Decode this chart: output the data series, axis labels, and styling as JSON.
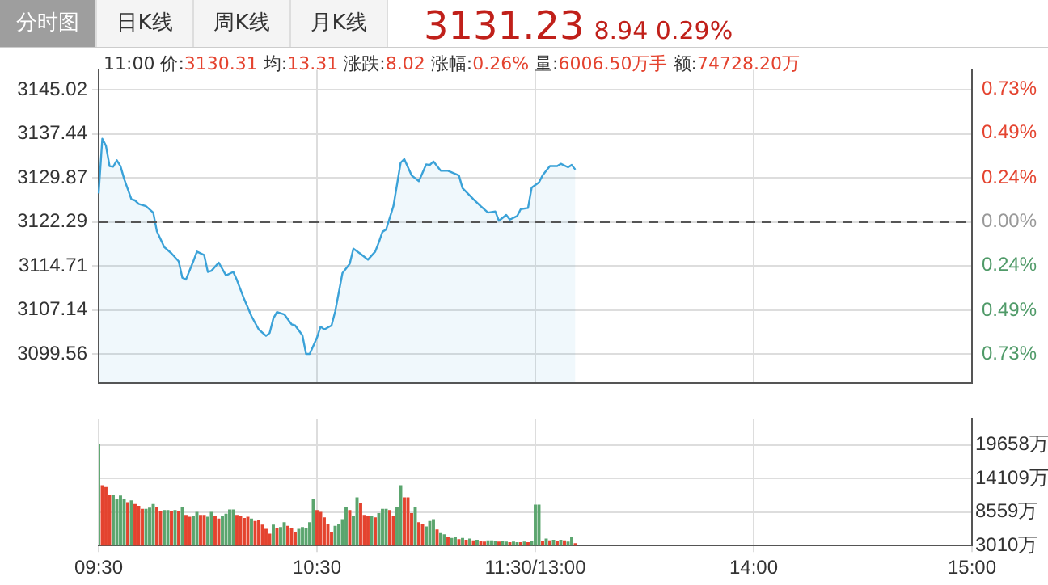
{
  "chart_data": [
    {
      "type": "area",
      "title": "3131.23 8.94 0.29%",
      "subtitle": "11:00 价:3130.31 均:13.31 涨跌:8.02 涨幅:0.26% 量:6006.50万手 额:74728.20万",
      "annotations": [
        "分时图",
        "日K线",
        "周K线",
        "月K线"
      ],
      "categories": [
        null,
        null,
        null,
        null,
        null,
        null,
        null,
        null,
        null,
        null,
        null,
        null,
        null,
        null,
        null,
        null,
        null,
        null,
        null,
        null,
        null,
        null,
        null,
        null,
        null,
        null,
        null,
        null,
        null,
        null,
        null,
        null,
        null,
        null,
        null,
        null,
        null,
        null,
        null,
        null,
        null,
        null,
        null,
        null,
        null,
        null,
        null,
        null,
        null,
        null,
        null,
        null,
        null,
        null,
        null,
        null,
        null,
        null,
        null,
        null,
        null,
        null,
        null,
        null,
        null,
        null,
        null,
        null,
        null,
        null,
        null,
        null,
        null,
        null,
        null,
        null,
        null,
        null,
        null,
        null,
        null,
        null,
        null,
        null,
        null,
        null,
        null,
        null,
        null,
        null,
        null,
        null,
        null,
        null,
        null,
        null,
        null,
        null,
        null,
        null,
        null,
        null,
        null,
        null,
        null,
        null,
        null,
        null,
        null,
        null,
        null,
        null,
        null,
        null,
        null,
        null,
        null,
        null,
        null,
        null,
        null,
        null,
        null,
        null,
        null,
        null,
        null,
        null,
        null,
        null,
        null,
        null,
        null,
        null,
        null,
        null,
        null,
        null,
        null,
        null,
        null,
        null,
        null,
        null,
        null,
        null,
        null,
        null,
        null,
        null,
        null,
        null,
        null,
        null,
        null,
        null,
        null,
        null,
        null,
        null,
        null,
        null,
        null,
        null,
        null,
        null,
        null,
        null,
        null,
        null,
        null,
        null,
        null,
        null,
        null,
        null,
        null,
        null,
        null,
        null,
        null,
        null,
        null,
        null,
        null,
        null,
        null,
        null,
        null,
        null,
        null,
        null,
        null,
        null,
        null,
        null,
        null,
        null,
        null,
        null,
        null,
        null,
        null,
        null,
        null,
        null,
        null,
        null,
        null,
        null,
        null,
        null,
        null,
        null,
        null,
        null,
        null,
        null,
        null,
        null,
        null,
        null,
        null,
        null,
        null,
        null,
        null,
        null,
        null,
        null,
        null,
        null,
        null,
        null,
        null,
        null,
        null,
        null,
        null,
        null,
        null
      ],
      "values": [
        3127.2,
        3136.6,
        3135.4,
        3131.9,
        3131.8,
        3132.9,
        3131.9,
        3129.7,
        null,
        3126.2,
        3126.0,
        3125.4,
        null,
        3125.0,
        null,
        3123.9,
        3120.7,
        null,
        3118.0,
        null,
        3116.9,
        null,
        3115.5,
        3112.7,
        3112.4,
        null,
        3115.5,
        3117.2,
        null,
        3116.6,
        3113.7,
        3113.9,
        null,
        3115.3,
        null,
        3113.1,
        null,
        3113.7,
        3112.3,
        null,
        3109.0,
        null,
        3106.1,
        null,
        3103.8,
        null,
        3102.7,
        3103.2,
        3105.7,
        3106.8,
        null,
        3106.4,
        null,
        3104.7,
        3104.5,
        null,
        3102.8,
        3099.6,
        3099.6,
        null,
        3102.4,
        3104.3,
        3103.8,
        null,
        3104.5,
        3106.9,
        null,
        3113.5,
        null,
        3115.1,
        3117.7,
        null,
        3116.8,
        null,
        3115.8,
        null,
        3117.2,
        3118.8,
        3120.6,
        3121.0,
        null,
        3125.0,
        null,
        3132.5,
        3133.1,
        null,
        3130.3,
        null,
        3129.3,
        null,
        3132.2,
        3132.1,
        3132.7,
        null,
        3131.1,
        null,
        3131.1,
        null,
        null,
        3130.3,
        3128.1,
        null,
        null,
        3126.2,
        null,
        3125.0,
        null,
        3123.9,
        null,
        3124.1,
        3122.5,
        null,
        3123.5,
        3122.7,
        null,
        3123.3,
        3124.5,
        null,
        3124.7,
        3128.2,
        null,
        3129.1,
        3130.3,
        null,
        3131.9,
        null,
        3131.9,
        3132.3,
        null,
        3131.7,
        3132.1,
        3131.3,
        null,
        null,
        null,
        null,
        null,
        null,
        null,
        null,
        null,
        null,
        null,
        null,
        null,
        null,
        null,
        null,
        null,
        null,
        null,
        null,
        null,
        null,
        null,
        null,
        null,
        null,
        null,
        null,
        null,
        null,
        null,
        null,
        null,
        null,
        null,
        null,
        null,
        null,
        null,
        null,
        null,
        null,
        null,
        null,
        null,
        null,
        null,
        null,
        null,
        null,
        null,
        null,
        null,
        null,
        null,
        null,
        null,
        null,
        null,
        null,
        null,
        null,
        null,
        null,
        null,
        null,
        null,
        null,
        null,
        null,
        null,
        null,
        null,
        null,
        null,
        null,
        null,
        null,
        null,
        null,
        null,
        null,
        null,
        null,
        null,
        null,
        null,
        null,
        null,
        null,
        null,
        null,
        null,
        null,
        null,
        null,
        null,
        null,
        null,
        null,
        null,
        null,
        null,
        null,
        null,
        null,
        null,
        null,
        null
      ],
      "color": "#3ba2d8",
      "marker": "none",
      "line_style": "solid",
      "ylim": [
        3094.65,
        3148.46
      ],
      "yticks": [
        3099.56,
        3107.14,
        3114.71,
        3122.29,
        3129.87,
        3137.44,
        3145.02
      ],
      "y2lim": [
        -0.885,
        0.838
      ],
      "y2ticks": [
        {
          "value": -0.73,
          "label": "0.73%"
        },
        {
          "value": -0.49,
          "label": "0.49%"
        },
        {
          "value": -0.24,
          "label": "0.24%"
        },
        {
          "value": 0,
          "label": "0.00%"
        },
        {
          "value": 0.24,
          "label": "0.24%"
        },
        {
          "value": 0.49,
          "label": "0.49%"
        },
        {
          "value": 0.73,
          "label": "0.73%"
        }
      ],
      "ref_lines": [
        {
          "axis": "y",
          "value": 3122.29,
          "line_style": "dashed",
          "color": "#555555"
        }
      ],
      "grid": true,
      "legend": false,
      "tick_labels": "y"
    },
    {
      "type": "bar",
      "categories": [
        "09:30",
        null,
        null,
        null,
        null,
        null,
        null,
        null,
        null,
        null,
        null,
        null,
        null,
        null,
        null,
        null,
        null,
        null,
        null,
        null,
        null,
        null,
        null,
        null,
        null,
        null,
        null,
        null,
        null,
        null,
        null,
        null,
        null,
        null,
        null,
        null,
        null,
        null,
        null,
        null,
        null,
        null,
        null,
        null,
        null,
        null,
        null,
        null,
        null,
        null,
        null,
        null,
        null,
        null,
        null,
        null,
        null,
        null,
        null,
        null,
        "10:30",
        null,
        null,
        null,
        null,
        null,
        null,
        null,
        null,
        null,
        null,
        null,
        null,
        null,
        null,
        null,
        null,
        null,
        null,
        null,
        null,
        null,
        null,
        null,
        null,
        null,
        null,
        null,
        null,
        null,
        null,
        null,
        null,
        null,
        null,
        null,
        null,
        null,
        null,
        null,
        null,
        null,
        null,
        null,
        null,
        null,
        null,
        null,
        null,
        null,
        null,
        null,
        null,
        null,
        null,
        null,
        null,
        null,
        null,
        null,
        "11:30/13:00",
        null,
        null,
        null,
        null,
        null,
        null,
        null,
        null,
        null,
        null,
        null,
        null,
        null,
        null,
        null,
        null,
        null,
        null,
        null,
        null,
        null,
        null,
        null,
        null,
        null,
        null,
        null,
        null,
        null,
        null,
        null,
        null,
        null,
        null,
        null,
        null,
        null,
        null,
        null,
        null,
        null,
        null,
        null,
        null,
        null,
        null,
        null,
        null,
        null,
        null,
        null,
        null,
        null,
        null,
        null,
        null,
        null,
        null,
        null,
        "14:00",
        null,
        null,
        null,
        null,
        null,
        null,
        null,
        null,
        null,
        null,
        null,
        null,
        null,
        null,
        null,
        null,
        null,
        null,
        null,
        null,
        null,
        null,
        null,
        null,
        null,
        null,
        null,
        null,
        null,
        null,
        null,
        null,
        null,
        null,
        null,
        null,
        null,
        null,
        null,
        null,
        null,
        null,
        null,
        null,
        null,
        null,
        null,
        null,
        null,
        null,
        null,
        null,
        null,
        null,
        null,
        null,
        null,
        null,
        null,
        "15:00"
      ],
      "series": [
        {
          "axis": "y2",
          "values": [
            19700,
            12900,
            12600,
            11300,
            11300,
            10600,
            11200,
            10600,
            10100,
            10400,
            9800,
            9500,
            9000,
            9000,
            9200,
            9800,
            9300,
            8600,
            8800,
            8800,
            8600,
            8800,
            8600,
            9300,
            8000,
            7700,
            7900,
            8500,
            8000,
            8000,
            7700,
            8500,
            7800,
            7400,
            7900,
            8200,
            8900,
            8900,
            8000,
            7800,
            7500,
            7700,
            7400,
            7000,
            7200,
            6400,
            5700,
            4900,
            6400,
            5900,
            6000,
            6800,
            6200,
            5800,
            5100,
            5700,
            6000,
            5800,
            6800,
            10700,
            8800,
            8500,
            7600,
            6500,
            5200,
            6200,
            6500,
            7300,
            9300,
            8800,
            7900,
            10900,
            10000,
            8000,
            7800,
            7900,
            7600,
            8300,
            9000,
            9000,
            8800,
            7900,
            9300,
            12900,
            10900,
            10900,
            8300,
            9300,
            6800,
            6500,
            6100,
            7000,
            7300,
            5600,
            5000,
            4800,
            4400,
            4200,
            4300,
            4000,
            4200,
            3900,
            4100,
            3800,
            3900,
            3700,
            3600,
            3800,
            3800,
            3700,
            3600,
            3700,
            3600,
            3500,
            3600,
            3500,
            3500,
            3600,
            3500,
            3700,
            9700,
            9700,
            3700,
            4100,
            3800,
            3900,
            3700,
            3900,
            3800,
            3600,
            4400,
            3300,
            null,
            null,
            null,
            null,
            null,
            null,
            null,
            null,
            null,
            null,
            null,
            null,
            null,
            null,
            null,
            null,
            null,
            null,
            null,
            null,
            null,
            null,
            null,
            null,
            null,
            null,
            null,
            null,
            null,
            null,
            null,
            null,
            null,
            null,
            null,
            null,
            null,
            null,
            null,
            null,
            null,
            null,
            null,
            null,
            null,
            null,
            null,
            null,
            null,
            null,
            null,
            null,
            null,
            null,
            null,
            null,
            null,
            null,
            null,
            null,
            null,
            null,
            null,
            null,
            null,
            null,
            null,
            null,
            null,
            null,
            null,
            null,
            null,
            null,
            null,
            null,
            null,
            null,
            null,
            null,
            null,
            null,
            null,
            null,
            null,
            null,
            null,
            null,
            null,
            null,
            null,
            null,
            null,
            null,
            null,
            null,
            null,
            null,
            null,
            null,
            null,
            null,
            null,
            null,
            null,
            null,
            null,
            null,
            null
          ],
          "colors": [
            "#5ba56e",
            "#e4432f",
            "#e4432f",
            "#e4432f",
            "#5ba56e",
            "#5ba56e",
            "#5ba56e",
            "#5ba56e",
            "#e4432f",
            "#5ba56e",
            "#e4432f",
            "#e4432f",
            "#e4432f",
            "#5ba56e",
            "#5ba56e",
            "#5ba56e",
            "#e4432f",
            "#e4432f",
            "#5ba56e",
            "#5ba56e",
            "#e4432f",
            "#5ba56e",
            "#e4432f",
            "#5ba56e",
            "#e4432f",
            "#e4432f",
            "#5ba56e",
            "#5ba56e",
            "#e4432f",
            "#e4432f",
            "#5ba56e",
            "#5ba56e",
            "#e4432f",
            "#e4432f",
            "#5ba56e",
            "#5ba56e",
            "#5ba56e",
            "#5ba56e",
            "#e4432f",
            "#e4432f",
            "#e4432f",
            "#e4432f",
            "#5ba56e",
            "#e4432f",
            "#e4432f",
            "#e4432f",
            "#e4432f",
            "#e4432f",
            "#5ba56e",
            "#e4432f",
            "#5ba56e",
            "#5ba56e",
            "#e4432f",
            "#e4432f",
            "#e4432f",
            "#5ba56e",
            "#5ba56e",
            "#5ba56e",
            "#5ba56e",
            "#5ba56e",
            "#e4432f",
            "#e4432f",
            "#e4432f",
            "#e4432f",
            "#e4432f",
            "#5ba56e",
            "#5ba56e",
            "#5ba56e",
            "#5ba56e",
            "#e4432f",
            "#5ba56e",
            "#5ba56e",
            "#e4432f",
            "#e4432f",
            "#e4432f",
            "#5ba56e",
            "#e4432f",
            "#5ba56e",
            "#5ba56e",
            "#5ba56e",
            "#e4432f",
            "#e4432f",
            "#5ba56e",
            "#5ba56e",
            "#e4432f",
            "#e4432f",
            "#e4432f",
            "#5ba56e",
            "#e4432f",
            "#e4432f",
            "#5ba56e",
            "#5ba56e",
            "#5ba56e",
            "#e4432f",
            "#5ba56e",
            "#5ba56e",
            "#e4432f",
            "#5ba56e",
            "#5ba56e",
            "#e4432f",
            "#5ba56e",
            "#e4432f",
            "#5ba56e",
            "#e4432f",
            "#5ba56e",
            "#e4432f",
            "#e4432f",
            "#5ba56e",
            "#5ba56e",
            "#5ba56e",
            "#e4432f",
            "#5ba56e",
            "#5ba56e",
            "#e4432f",
            "#5ba56e",
            "#5ba56e",
            "#e4432f",
            "#5ba56e",
            "#e4432f",
            "#5ba56e",
            "#5ba56e",
            "#5ba56e",
            "#e4432f",
            "#5ba56e",
            "#e4432f",
            "#5ba56e",
            "#e4432f",
            "#5ba56e",
            "#e4432f",
            "#5ba56e",
            "#5ba56e",
            "#e4432f",
            null,
            null,
            null,
            null,
            null,
            null,
            null,
            null,
            null,
            null,
            null,
            null,
            null,
            null,
            null,
            null,
            null,
            null,
            null,
            null,
            null,
            null,
            null,
            null,
            null,
            null,
            null,
            null,
            null,
            null,
            null,
            null,
            null,
            null,
            null,
            null,
            null,
            null,
            null,
            null,
            null,
            null,
            null,
            null,
            null,
            null,
            null,
            null,
            null,
            null,
            null,
            null,
            null,
            null,
            null,
            null,
            null,
            null,
            null,
            null,
            null,
            null,
            null,
            null,
            null,
            null,
            null,
            null,
            null,
            null,
            null,
            null,
            null,
            null,
            null,
            null,
            null,
            null,
            null,
            null,
            null,
            null,
            null,
            null,
            null,
            null,
            null,
            null,
            null,
            null,
            null,
            null,
            null,
            null,
            null,
            null,
            null,
            null,
            null,
            null,
            null,
            null,
            null,
            null,
            null,
            null,
            null,
            null,
            null
          ]
        }
      ],
      "y2lim": [
        3010,
        23990
      ],
      "y2ticks": [
        {
          "value": 3010,
          "label": "3010万"
        },
        {
          "value": 8559,
          "label": "8559万"
        },
        {
          "value": 14109,
          "label": "14109万"
        },
        {
          "value": 19658,
          "label": "19658万"
        }
      ],
      "grid": true,
      "legend": false
    }
  ]
}
